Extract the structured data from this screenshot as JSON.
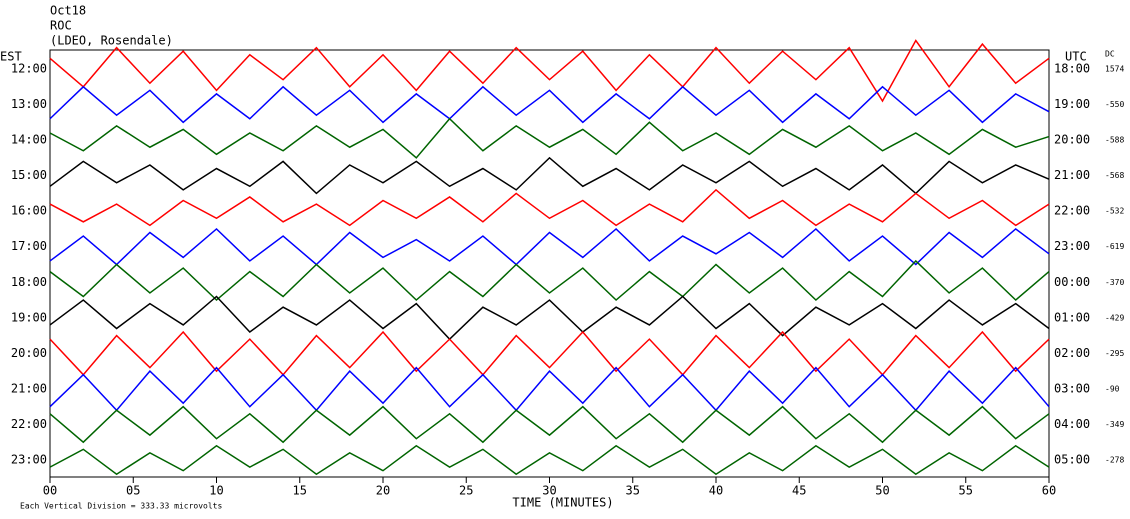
{
  "chart_data": {
    "type": "helicorder",
    "header": [
      "Oct18",
      "ROC",
      "(LDEO, Rosendale)"
    ],
    "left_title": "EST",
    "right_title": "UTC",
    "dc_title": "DC",
    "xlabel": "TIME (MINUTES)",
    "footnote": "Each Vertical Division =  333.33 microvolts",
    "xlim": [
      0,
      60
    ],
    "xticks": [
      {
        "value": 0,
        "label": "00"
      },
      {
        "value": 5,
        "label": "05"
      },
      10,
      15,
      20,
      25,
      30,
      35,
      40,
      45,
      50,
      55,
      60
    ],
    "x": [
      0,
      2,
      4,
      6,
      8,
      10,
      12,
      14,
      16,
      18,
      20,
      22,
      24,
      26,
      28,
      30,
      32,
      34,
      36,
      38,
      40,
      42,
      44,
      46,
      48,
      50,
      52,
      54,
      56,
      58,
      60
    ],
    "rows": [
      {
        "est": "12:00",
        "utc": "18:00",
        "dc": 1574,
        "color": "#ff0000",
        "values": [
          0.3,
          -0.5,
          0.6,
          -0.4,
          0.5,
          -0.6,
          0.4,
          -0.3,
          0.6,
          -0.5,
          0.4,
          -0.6,
          0.5,
          -0.4,
          0.6,
          -0.3,
          0.5,
          -0.6,
          0.4,
          -0.5,
          0.6,
          -0.4,
          0.5,
          -0.3,
          0.6,
          -0.9,
          0.8,
          -0.5,
          0.7,
          -0.4,
          0.3
        ]
      },
      {
        "est": "13:00",
        "utc": "19:00",
        "dc": -550,
        "color": "#0000ff",
        "values": [
          -0.4,
          0.5,
          -0.3,
          0.4,
          -0.5,
          0.3,
          -0.4,
          0.5,
          -0.3,
          0.4,
          -0.5,
          0.3,
          -0.4,
          0.5,
          -0.3,
          0.4,
          -0.5,
          0.3,
          -0.4,
          0.5,
          -0.3,
          0.4,
          -0.5,
          0.3,
          -0.4,
          0.5,
          -0.3,
          0.4,
          -0.5,
          0.3,
          -0.2
        ]
      },
      {
        "est": "14:00",
        "utc": "20:00",
        "dc": -588,
        "color": "#006400",
        "values": [
          0.2,
          -0.3,
          0.4,
          -0.2,
          0.3,
          -0.4,
          0.2,
          -0.3,
          0.4,
          -0.2,
          0.3,
          -0.5,
          0.6,
          -0.3,
          0.4,
          -0.2,
          0.3,
          -0.4,
          0.5,
          -0.3,
          0.2,
          -0.4,
          0.3,
          -0.2,
          0.4,
          -0.3,
          0.2,
          -0.4,
          0.3,
          -0.2,
          0.1
        ]
      },
      {
        "est": "15:00",
        "utc": "21:00",
        "dc": -568,
        "color": "#000000",
        "values": [
          -0.3,
          0.4,
          -0.2,
          0.3,
          -0.4,
          0.2,
          -0.3,
          0.4,
          -0.5,
          0.3,
          -0.2,
          0.4,
          -0.3,
          0.2,
          -0.4,
          0.5,
          -0.3,
          0.2,
          -0.4,
          0.3,
          -0.2,
          0.4,
          -0.3,
          0.2,
          -0.4,
          0.3,
          -0.5,
          0.4,
          -0.2,
          0.3,
          -0.1
        ]
      },
      {
        "est": "16:00",
        "utc": "22:00",
        "dc": -532,
        "color": "#ff0000",
        "values": [
          0.2,
          -0.3,
          0.2,
          -0.4,
          0.3,
          -0.2,
          0.4,
          -0.3,
          0.2,
          -0.4,
          0.3,
          -0.2,
          0.4,
          -0.3,
          0.5,
          -0.2,
          0.3,
          -0.4,
          0.2,
          -0.3,
          0.6,
          -0.2,
          0.3,
          -0.4,
          0.2,
          -0.3,
          0.5,
          -0.2,
          0.3,
          -0.4,
          0.2
        ]
      },
      {
        "est": "17:00",
        "utc": "23:00",
        "dc": -619,
        "color": "#0000ff",
        "values": [
          -0.4,
          0.3,
          -0.5,
          0.4,
          -0.3,
          0.5,
          -0.4,
          0.3,
          -0.5,
          0.4,
          -0.3,
          0.2,
          -0.4,
          0.3,
          -0.5,
          0.4,
          -0.3,
          0.5,
          -0.4,
          0.3,
          -0.2,
          0.4,
          -0.3,
          0.5,
          -0.4,
          0.3,
          -0.5,
          0.4,
          -0.3,
          0.5,
          -0.2
        ]
      },
      {
        "est": "18:00",
        "utc": "00:00",
        "dc": -370,
        "color": "#006400",
        "values": [
          0.3,
          -0.4,
          0.5,
          -0.3,
          0.4,
          -0.5,
          0.3,
          -0.4,
          0.5,
          -0.3,
          0.4,
          -0.5,
          0.3,
          -0.4,
          0.5,
          -0.3,
          0.4,
          -0.5,
          0.3,
          -0.4,
          0.5,
          -0.3,
          0.4,
          -0.5,
          0.3,
          -0.4,
          0.6,
          -0.3,
          0.4,
          -0.5,
          0.3
        ]
      },
      {
        "est": "19:00",
        "utc": "01:00",
        "dc": -429,
        "color": "#000000",
        "values": [
          -0.2,
          0.5,
          -0.3,
          0.4,
          -0.2,
          0.6,
          -0.4,
          0.3,
          -0.2,
          0.5,
          -0.3,
          0.4,
          -0.6,
          0.3,
          -0.2,
          0.5,
          -0.4,
          0.3,
          -0.2,
          0.6,
          -0.3,
          0.4,
          -0.5,
          0.3,
          -0.2,
          0.4,
          -0.3,
          0.5,
          -0.2,
          0.4,
          -0.3
        ]
      },
      {
        "est": "20:00",
        "utc": "02:00",
        "dc": -295,
        "color": "#ff0000",
        "values": [
          0.4,
          -0.6,
          0.5,
          -0.4,
          0.6,
          -0.5,
          0.4,
          -0.6,
          0.5,
          -0.4,
          0.6,
          -0.5,
          0.4,
          -0.6,
          0.5,
          -0.4,
          0.6,
          -0.5,
          0.4,
          -0.6,
          0.5,
          -0.4,
          0.6,
          -0.5,
          0.4,
          -0.6,
          0.5,
          -0.4,
          0.6,
          -0.5,
          0.4
        ]
      },
      {
        "est": "21:00",
        "utc": "03:00",
        "dc": -90,
        "color": "#0000ff",
        "values": [
          -0.5,
          0.4,
          -0.6,
          0.5,
          -0.4,
          0.6,
          -0.5,
          0.4,
          -0.6,
          0.5,
          -0.4,
          0.6,
          -0.5,
          0.4,
          -0.6,
          0.5,
          -0.4,
          0.6,
          -0.5,
          0.4,
          -0.6,
          0.5,
          -0.4,
          0.6,
          -0.5,
          0.4,
          -0.6,
          0.5,
          -0.4,
          0.6,
          -0.5
        ]
      },
      {
        "est": "22:00",
        "utc": "04:00",
        "dc": -349,
        "color": "#006400",
        "values": [
          0.3,
          -0.5,
          0.4,
          -0.3,
          0.5,
          -0.4,
          0.3,
          -0.5,
          0.4,
          -0.3,
          0.5,
          -0.4,
          0.3,
          -0.5,
          0.4,
          -0.3,
          0.5,
          -0.4,
          0.3,
          -0.5,
          0.4,
          -0.3,
          0.5,
          -0.4,
          0.3,
          -0.5,
          0.4,
          -0.3,
          0.5,
          -0.4,
          0.3
        ]
      },
      {
        "est": "23:00",
        "utc": "05:00",
        "dc": -278,
        "color": "#006400",
        "values": [
          -0.2,
          0.3,
          -0.4,
          0.2,
          -0.3,
          0.4,
          -0.2,
          0.3,
          -0.4,
          0.2,
          -0.3,
          0.4,
          -0.2,
          0.3,
          -0.4,
          0.2,
          -0.3,
          0.4,
          -0.2,
          0.3,
          -0.4,
          0.2,
          -0.3,
          0.4,
          -0.2,
          0.3,
          -0.4,
          0.2,
          -0.3,
          0.4,
          -0.2
        ]
      }
    ]
  }
}
